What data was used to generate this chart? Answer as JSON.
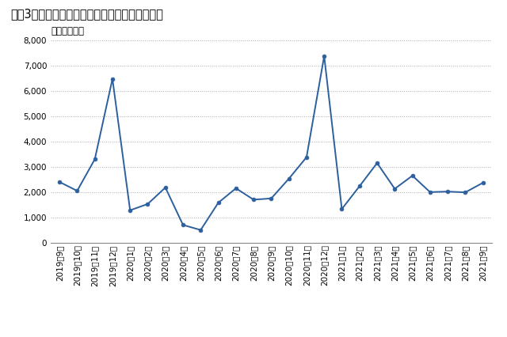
{
  "title": "図表3　首都圏新築マンションの発売戸数の推移",
  "unit_label": "（単位：戸）",
  "labels": [
    "2019年9月",
    "2019年10月",
    "2019年11月",
    "2019年12月",
    "2020年1月",
    "2020年2月",
    "2020年3月",
    "2020年4月",
    "2020年5月",
    "2020年6月",
    "2020年7月",
    "2020年8月",
    "2020年9月",
    "2020年10月",
    "2020年11月",
    "2020年12月",
    "2021年1月",
    "2021年2月",
    "2021年3月",
    "2021年4月",
    "2021年5月",
    "2021年6月",
    "2021年7月",
    "2021年8月",
    "2021年9月"
  ],
  "values": [
    2400,
    2050,
    3300,
    6480,
    1280,
    1530,
    2180,
    700,
    500,
    1580,
    2150,
    1700,
    1750,
    2530,
    3380,
    7380,
    1330,
    2230,
    3150,
    2130,
    2650,
    2000,
    2020,
    1990,
    2370
  ],
  "line_color": "#2c5f9e",
  "marker_color": "#2c5f9e",
  "background_color": "#ffffff",
  "plot_bg_color": "#ffffff",
  "grid_color": "#aaaaaa",
  "ylim": [
    0,
    8000
  ],
  "yticks": [
    0,
    1000,
    2000,
    3000,
    4000,
    5000,
    6000,
    7000,
    8000
  ],
  "title_fontsize": 10.5,
  "tick_fontsize": 7.5,
  "unit_fontsize": 8.5
}
